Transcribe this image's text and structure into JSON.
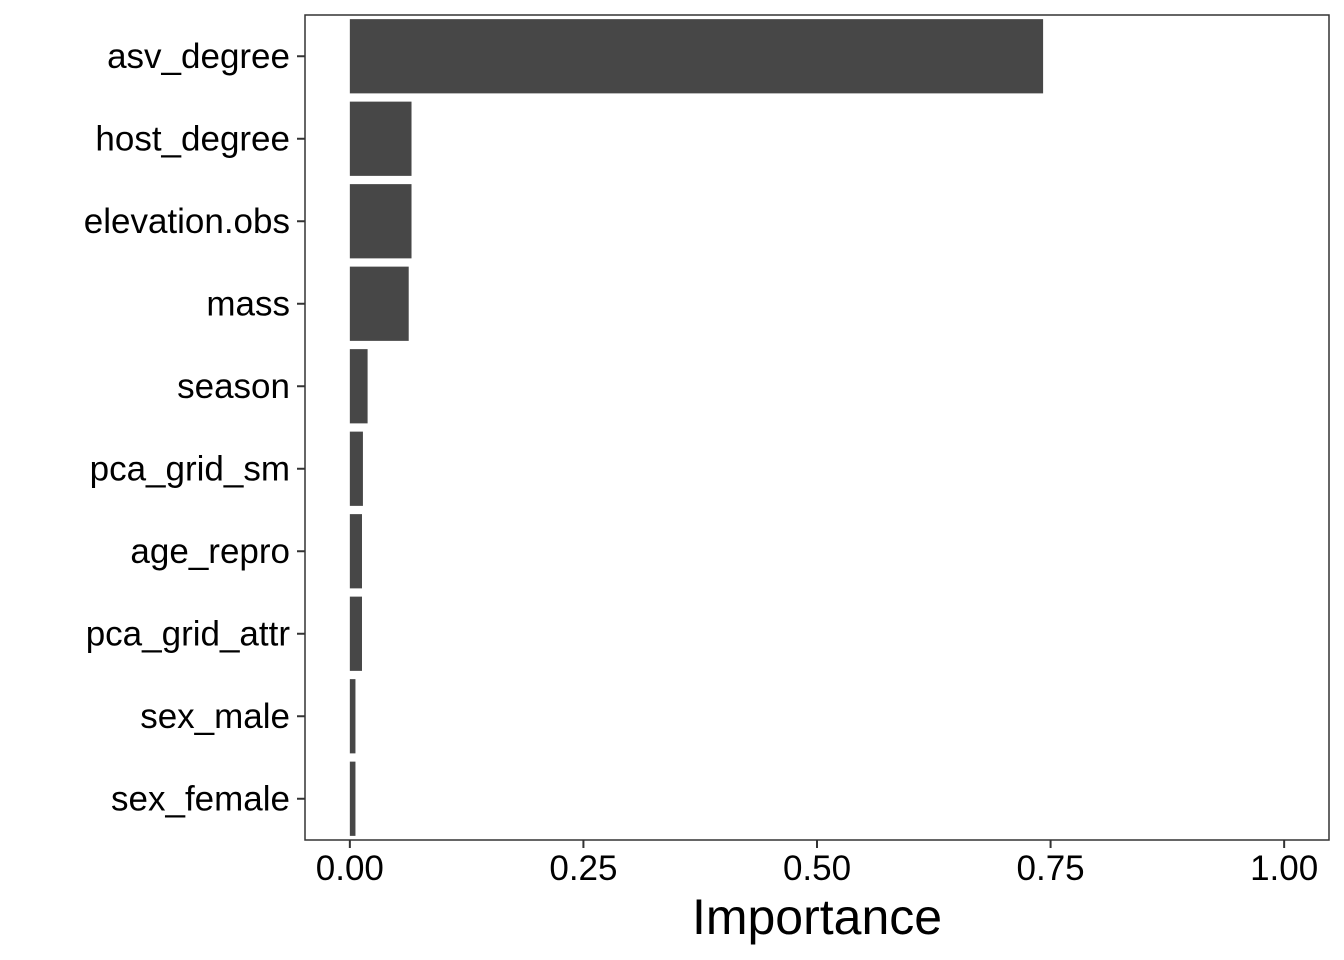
{
  "chart_data": {
    "type": "bar",
    "orientation": "horizontal",
    "categories": [
      "asv_degree",
      "host_degree",
      "elevation.obs",
      "mass",
      "season",
      "pca_grid_sm",
      "age_repro",
      "pca_grid_attr",
      "sex_male",
      "sex_female"
    ],
    "values": [
      0.742,
      0.066,
      0.066,
      0.063,
      0.019,
      0.014,
      0.013,
      0.013,
      0.006,
      0.006
    ],
    "title": "",
    "xlabel": "Importance",
    "ylabel": "",
    "xlim": [
      -0.048,
      1.048
    ],
    "x_ticks": [
      0.0,
      0.25,
      0.5,
      0.75,
      1.0
    ],
    "x_tick_labels": [
      "0.00",
      "0.25",
      "0.50",
      "0.75",
      "1.00"
    ],
    "grid": false,
    "legend": "none",
    "bar_color": "#474747",
    "panel_border_color": "#333333",
    "background": "#ffffff"
  }
}
